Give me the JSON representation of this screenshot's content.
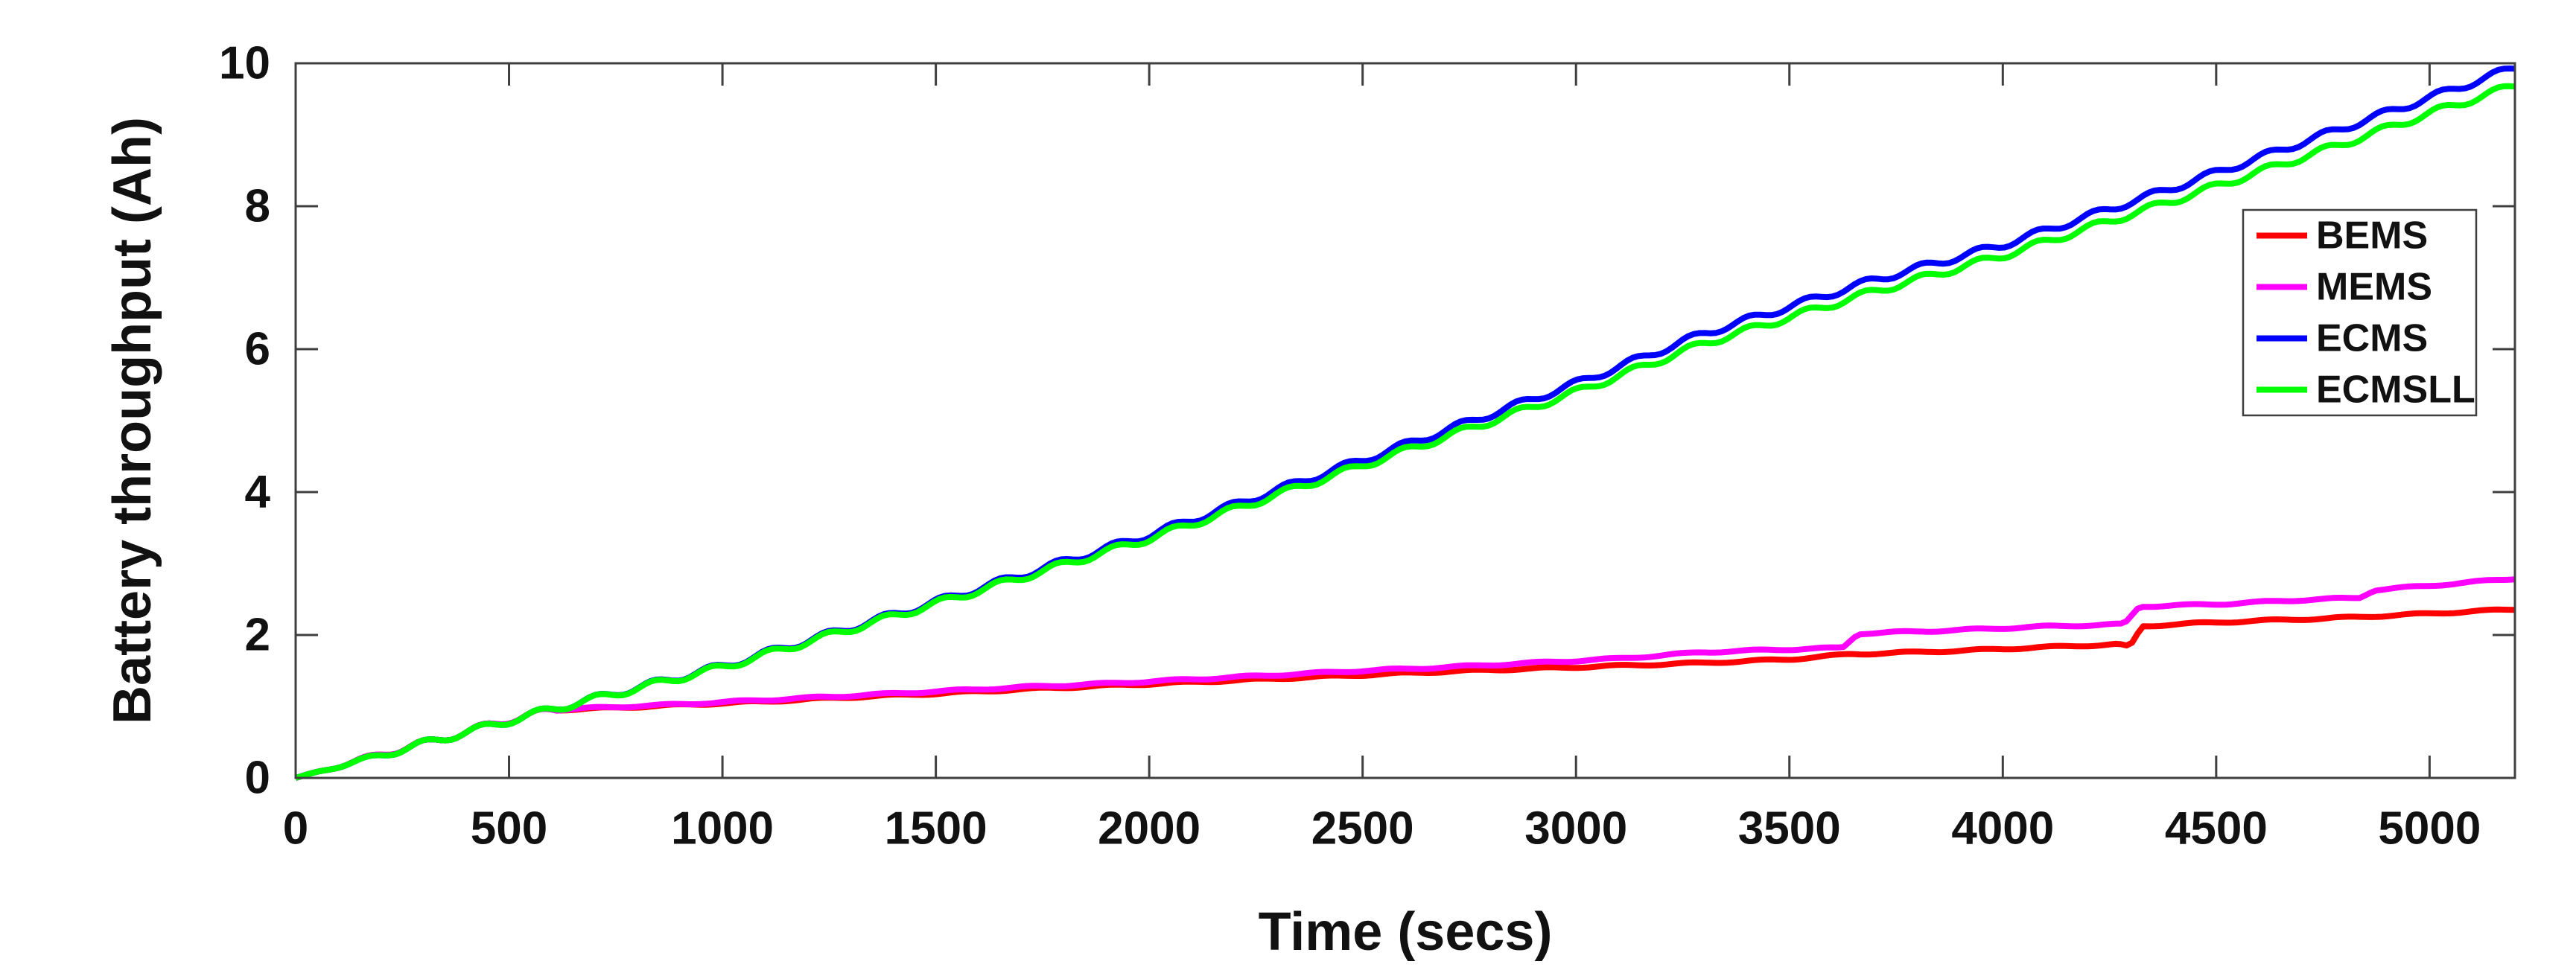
{
  "chart_data": {
    "type": "line",
    "title": "",
    "xlabel": "Time (secs)",
    "ylabel": "Battery throughput (Ah)",
    "xlim": [
      0,
      5200
    ],
    "ylim": [
      0,
      10
    ],
    "xticks": [
      0,
      500,
      1000,
      1500,
      2000,
      2500,
      3000,
      3500,
      4000,
      4500,
      5000
    ],
    "yticks": [
      0,
      2,
      4,
      6,
      8,
      10
    ],
    "grid": false,
    "box": true,
    "tick_direction": "in",
    "axis_color": "#3f3f3f",
    "text_color": "#111111",
    "background_color": "#ffffff",
    "legend": {
      "position": "inside-right",
      "entries": [
        "BEMS",
        "MEMS",
        "ECMS",
        "ECMSLL"
      ]
    },
    "style_hints": {
      "ripple_common_until": 600,
      "ripple_common": {
        "amplitude": 0.05,
        "period": 135,
        "phase": 0.2
      }
    },
    "series": [
      {
        "name": "BEMS",
        "color": "#ff0000",
        "ripple": {
          "amplitude": 0.012,
          "period": 170,
          "phase": 0.2
        },
        "points": [
          [
            0,
            0
          ],
          [
            100,
            0.16
          ],
          [
            200,
            0.33
          ],
          [
            300,
            0.48
          ],
          [
            400,
            0.64
          ],
          [
            500,
            0.81
          ],
          [
            600,
            0.95
          ],
          [
            700,
            0.97
          ],
          [
            900,
            1.02
          ],
          [
            1100,
            1.07
          ],
          [
            1300,
            1.13
          ],
          [
            1500,
            1.18
          ],
          [
            1700,
            1.24
          ],
          [
            1900,
            1.29
          ],
          [
            2100,
            1.34
          ],
          [
            2300,
            1.39
          ],
          [
            2500,
            1.44
          ],
          [
            2700,
            1.49
          ],
          [
            2900,
            1.53
          ],
          [
            3100,
            1.57
          ],
          [
            3300,
            1.61
          ],
          [
            3500,
            1.66
          ],
          [
            3640,
            1.73
          ],
          [
            3900,
            1.78
          ],
          [
            4100,
            1.83
          ],
          [
            4270,
            1.87
          ],
          [
            4298,
            1.83
          ],
          [
            4326,
            2.12
          ],
          [
            4400,
            2.15
          ],
          [
            4600,
            2.2
          ],
          [
            4750,
            2.23
          ],
          [
            4900,
            2.27
          ],
          [
            5000,
            2.3
          ],
          [
            5100,
            2.33
          ],
          [
            5200,
            2.36
          ]
        ]
      },
      {
        "name": "MEMS",
        "color": "#ff00ff",
        "ripple": {
          "amplitude": 0.012,
          "period": 170,
          "phase": 0.9
        },
        "points": [
          [
            0,
            0
          ],
          [
            100,
            0.16
          ],
          [
            200,
            0.33
          ],
          [
            300,
            0.48
          ],
          [
            400,
            0.64
          ],
          [
            500,
            0.81
          ],
          [
            600,
            0.95
          ],
          [
            700,
            0.98
          ],
          [
            900,
            1.03
          ],
          [
            1100,
            1.09
          ],
          [
            1300,
            1.15
          ],
          [
            1500,
            1.21
          ],
          [
            1700,
            1.27
          ],
          [
            1900,
            1.32
          ],
          [
            2100,
            1.38
          ],
          [
            2300,
            1.44
          ],
          [
            2500,
            1.5
          ],
          [
            2700,
            1.55
          ],
          [
            2900,
            1.61
          ],
          [
            3100,
            1.67
          ],
          [
            3300,
            1.76
          ],
          [
            3500,
            1.8
          ],
          [
            3625,
            1.82
          ],
          [
            3660,
            2.02
          ],
          [
            3900,
            2.07
          ],
          [
            4100,
            2.12
          ],
          [
            4285,
            2.15
          ],
          [
            4320,
            2.4
          ],
          [
            4500,
            2.43
          ],
          [
            4700,
            2.49
          ],
          [
            4835,
            2.52
          ],
          [
            4870,
            2.63
          ],
          [
            5000,
            2.69
          ],
          [
            5100,
            2.74
          ],
          [
            5200,
            2.79
          ]
        ]
      },
      {
        "name": "ECMS",
        "color": "#0000ff",
        "ripple": {
          "amplitude": 0.05,
          "period": 135,
          "phase": 0.2
        },
        "points": [
          [
            0,
            0
          ],
          [
            250,
            0.4
          ],
          [
            600,
            0.96
          ],
          [
            1000,
            1.56
          ],
          [
            1500,
            2.46
          ],
          [
            2000,
            3.4
          ],
          [
            2600,
            4.66
          ],
          [
            3000,
            5.52
          ],
          [
            3300,
            6.22
          ],
          [
            3700,
            6.97
          ],
          [
            4000,
            7.46
          ],
          [
            4400,
            8.26
          ],
          [
            4800,
            9.1
          ],
          [
            5000,
            9.52
          ],
          [
            5200,
            9.94
          ]
        ]
      },
      {
        "name": "ECMSLL",
        "color": "#00ff00",
        "ripple": {
          "amplitude": 0.05,
          "period": 135,
          "phase": 0.2
        },
        "points": [
          [
            0,
            0
          ],
          [
            250,
            0.4
          ],
          [
            600,
            0.96
          ],
          [
            1000,
            1.55
          ],
          [
            1500,
            2.44
          ],
          [
            2000,
            3.35
          ],
          [
            2600,
            4.58
          ],
          [
            3000,
            5.4
          ],
          [
            3300,
            6.08
          ],
          [
            3700,
            6.81
          ],
          [
            4000,
            7.31
          ],
          [
            4400,
            8.08
          ],
          [
            4800,
            8.88
          ],
          [
            5000,
            9.3
          ],
          [
            5200,
            9.69
          ]
        ]
      }
    ]
  }
}
